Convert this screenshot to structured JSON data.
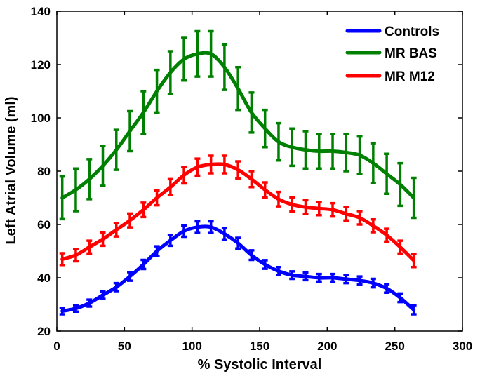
{
  "chart_data": {
    "type": "line",
    "title": "",
    "xlabel": "% Systolic Interval",
    "ylabel": "Left Atrial Volume (ml)",
    "xlim": [
      0,
      300
    ],
    "ylim": [
      20,
      140
    ],
    "xticks": [
      0,
      50,
      100,
      150,
      200,
      250,
      300
    ],
    "yticks": [
      20,
      40,
      60,
      80,
      100,
      120,
      140
    ],
    "grid": false,
    "legend_position": "top-right",
    "x": [
      4,
      14,
      24,
      34,
      44,
      54,
      64,
      74,
      84,
      94,
      104,
      114,
      124,
      134,
      144,
      154,
      164,
      174,
      184,
      194,
      204,
      214,
      224,
      234,
      244,
      254,
      264
    ],
    "series": [
      {
        "name": "Controls",
        "color": "#0000ff",
        "values": [
          27.5,
          28.5,
          30.5,
          33.5,
          36.5,
          40.5,
          45,
          50,
          54,
          57.5,
          59,
          59,
          56.5,
          53,
          48.5,
          45,
          42.5,
          41,
          40.5,
          40,
          40,
          39.5,
          39,
          38,
          36,
          32.5,
          28
        ],
        "errors": [
          1.2,
          1.2,
          1.3,
          1.4,
          1.5,
          1.6,
          1.7,
          1.8,
          2,
          2.1,
          2.2,
          2.2,
          2.1,
          2,
          1.8,
          1.6,
          1.5,
          1.4,
          1.4,
          1.4,
          1.4,
          1.5,
          1.5,
          1.6,
          1.6,
          1.6,
          1.7
        ]
      },
      {
        "name": "MR BAS",
        "color": "#008000",
        "values": [
          70,
          73,
          77,
          82,
          88,
          95,
          102,
          110,
          117,
          122,
          124,
          124,
          119,
          111,
          102,
          96,
          91,
          89,
          88,
          87.5,
          87.5,
          87,
          86,
          83,
          79,
          75,
          70
        ],
        "errors": [
          8,
          8,
          7.5,
          7.5,
          7.5,
          7.5,
          8,
          8,
          8,
          8,
          8.5,
          8.5,
          8.5,
          8,
          7.5,
          7,
          7,
          7,
          7,
          6.5,
          6.5,
          7,
          7,
          7.5,
          7.5,
          8,
          7.5
        ]
      },
      {
        "name": "MR M12",
        "color": "#ff0000",
        "values": [
          47,
          48.5,
          51.5,
          54.5,
          58,
          61.5,
          65.5,
          70,
          74,
          78.5,
          81.5,
          82.5,
          82.5,
          80.5,
          77,
          73,
          69.5,
          67.5,
          66.5,
          66,
          65.5,
          64,
          62.5,
          59.5,
          56,
          51.5,
          46.5
        ],
        "errors": [
          2.2,
          2.3,
          2.4,
          2.5,
          2.5,
          2.6,
          2.7,
          2.8,
          3,
          3.1,
          3.2,
          3.3,
          3.3,
          3.2,
          3,
          2.8,
          2.7,
          2.6,
          2.6,
          2.5,
          2.5,
          2.5,
          2.5,
          2.4,
          2.4,
          2.4,
          2.5
        ]
      }
    ]
  }
}
